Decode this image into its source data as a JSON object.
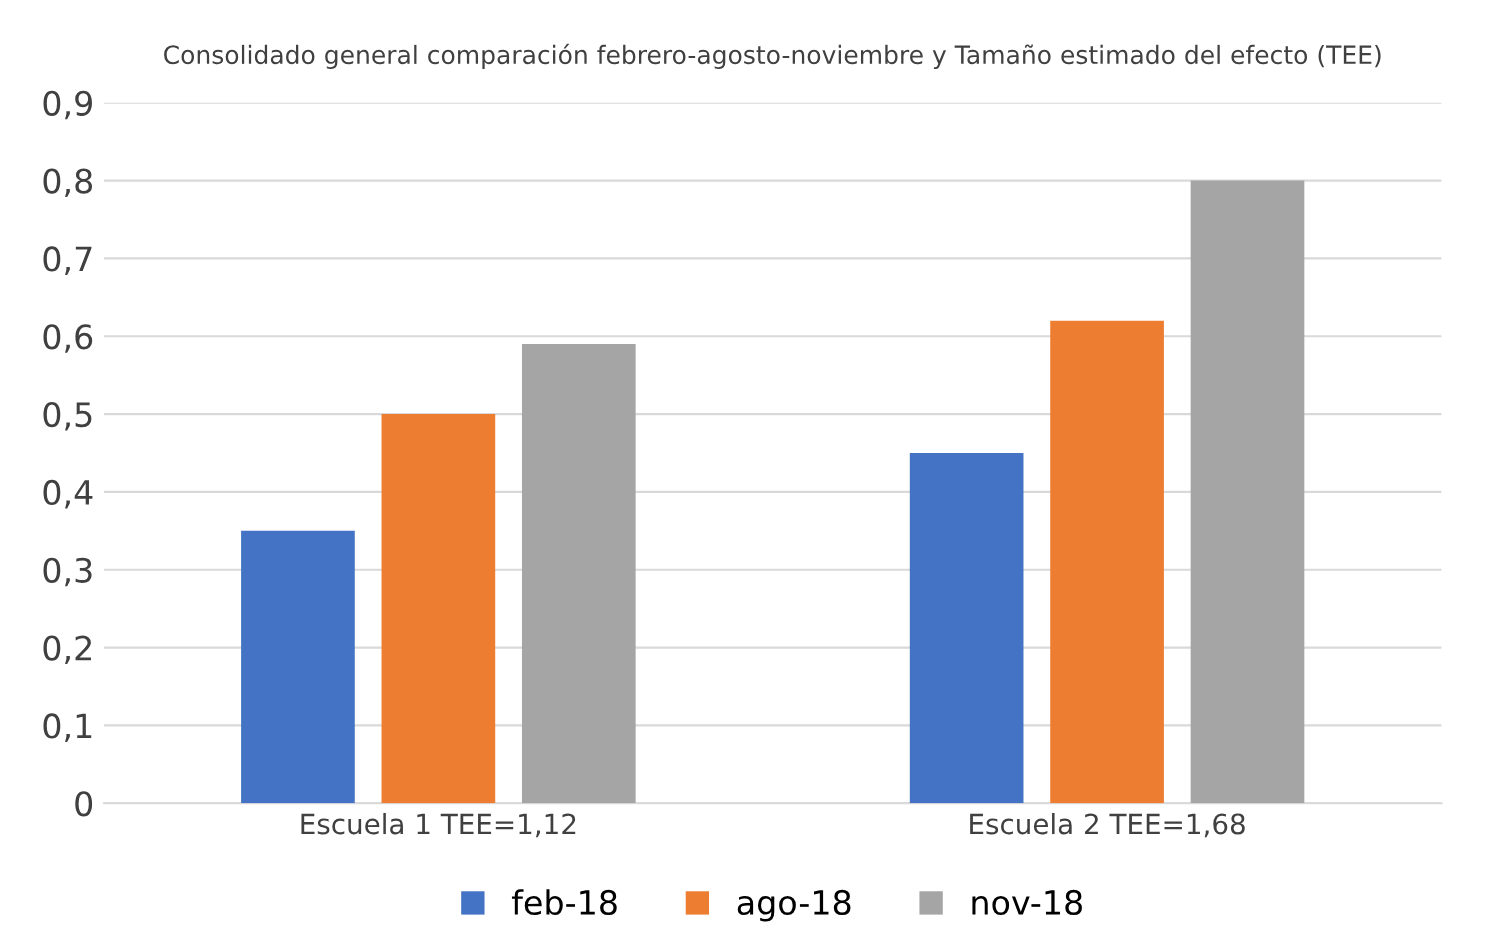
{
  "chart_data": {
    "type": "bar",
    "title": "Consolidado general comparación febrero-agosto-noviembre y Tamaño estimado del efecto (TEE)",
    "categories": [
      "Escuela 1 TEE=1,12",
      "Escuela 2 TEE=1,68"
    ],
    "series": [
      {
        "name": "feb-18",
        "color": "#4472c4",
        "values": [
          0.35,
          0.45
        ]
      },
      {
        "name": "ago-18",
        "color": "#ed7d31",
        "values": [
          0.5,
          0.62
        ]
      },
      {
        "name": "nov-18",
        "color": "#a5a5a5",
        "values": [
          0.59,
          0.8
        ]
      }
    ],
    "ylim": [
      0,
      0.9
    ],
    "yticks": [
      {
        "value": 0,
        "label": "0"
      },
      {
        "value": 0.1,
        "label": "0,1"
      },
      {
        "value": 0.2,
        "label": "0,2"
      },
      {
        "value": 0.3,
        "label": "0,3"
      },
      {
        "value": 0.4,
        "label": "0,4"
      },
      {
        "value": 0.5,
        "label": "0,5"
      },
      {
        "value": 0.6,
        "label": "0,6"
      },
      {
        "value": 0.7,
        "label": "0,7"
      },
      {
        "value": 0.8,
        "label": "0,8"
      },
      {
        "value": 0.9,
        "label": "0,9"
      }
    ],
    "grid": "y",
    "legend": "bottom"
  }
}
